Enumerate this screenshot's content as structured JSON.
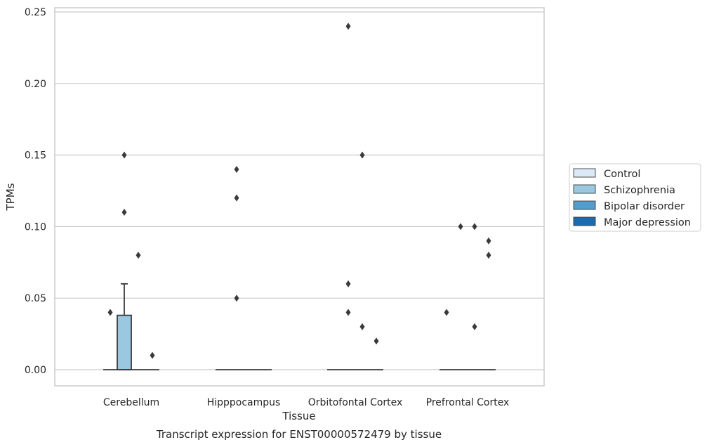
{
  "chart_data": {
    "type": "box",
    "xlabel": "Tissue",
    "ylabel": "TPMs",
    "caption": "Transcript expression for ENST00000572479 by tissue",
    "ylim": [
      -0.012,
      0.253
    ],
    "yticks": [
      "0.00",
      "0.05",
      "0.10",
      "0.15",
      "0.20",
      "0.25"
    ],
    "ytick_values": [
      0,
      0.05,
      0.1,
      0.15,
      0.2,
      0.25
    ],
    "grid": true,
    "legend_position": "right",
    "categories": [
      "Cerebellum",
      "Hipppocampus",
      "Orbitofontal Cortex",
      "Prefrontal Cortex"
    ],
    "series": [
      {
        "name": "Control",
        "color": "#dbe9f6",
        "boxes": [
          {
            "q1": 0,
            "median": 0,
            "q3": 0,
            "whisker_low": 0,
            "whisker_high": 0,
            "outliers": [
              0.04
            ]
          },
          {
            "q1": 0,
            "median": 0,
            "q3": 0,
            "whisker_low": 0,
            "whisker_high": 0,
            "outliers": []
          },
          {
            "q1": 0,
            "median": 0,
            "q3": 0,
            "whisker_low": 0,
            "whisker_high": 0,
            "outliers": []
          },
          {
            "q1": 0,
            "median": 0,
            "q3": 0,
            "whisker_low": 0,
            "whisker_high": 0,
            "outliers": [
              0.04
            ]
          }
        ]
      },
      {
        "name": "Schizophrenia",
        "color": "#9ac8e0",
        "boxes": [
          {
            "q1": 0,
            "median": 0,
            "q3": 0.038,
            "whisker_low": 0,
            "whisker_high": 0.06,
            "outliers": [
              0.15,
              0.11
            ]
          },
          {
            "q1": 0,
            "median": 0,
            "q3": 0,
            "whisker_low": 0,
            "whisker_high": 0,
            "outliers": [
              0.14,
              0.12,
              0.05
            ]
          },
          {
            "q1": 0,
            "median": 0,
            "q3": 0,
            "whisker_low": 0,
            "whisker_high": 0,
            "outliers": [
              0.24,
              0.06,
              0.04
            ]
          },
          {
            "q1": 0,
            "median": 0,
            "q3": 0,
            "whisker_low": 0,
            "whisker_high": 0,
            "outliers": [
              0.1
            ]
          }
        ]
      },
      {
        "name": "Bipolar disorder",
        "color": "#529dcc",
        "boxes": [
          {
            "q1": 0,
            "median": 0,
            "q3": 0,
            "whisker_low": 0,
            "whisker_high": 0,
            "outliers": [
              0.08
            ]
          },
          {
            "q1": 0,
            "median": 0,
            "q3": 0,
            "whisker_low": 0,
            "whisker_high": 0,
            "outliers": []
          },
          {
            "q1": 0,
            "median": 0,
            "q3": 0,
            "whisker_low": 0,
            "whisker_high": 0,
            "outliers": [
              0.15,
              0.03
            ]
          },
          {
            "q1": 0,
            "median": 0,
            "q3": 0,
            "whisker_low": 0,
            "whisker_high": 0,
            "outliers": [
              0.1,
              0.03
            ]
          }
        ]
      },
      {
        "name": "Major depression",
        "color": "#1c6aaf",
        "boxes": [
          {
            "q1": 0,
            "median": 0,
            "q3": 0,
            "whisker_low": 0,
            "whisker_high": 0,
            "outliers": [
              0.01
            ]
          },
          {
            "q1": 0,
            "median": 0,
            "q3": 0,
            "whisker_low": 0,
            "whisker_high": 0,
            "outliers": []
          },
          {
            "q1": 0,
            "median": 0,
            "q3": 0,
            "whisker_low": 0,
            "whisker_high": 0,
            "outliers": [
              0.02
            ]
          },
          {
            "q1": 0,
            "median": 0,
            "q3": 0,
            "whisker_low": 0,
            "whisker_high": 0,
            "outliers": [
              0.09,
              0.08
            ]
          }
        ]
      }
    ]
  },
  "style": {
    "grid_color": "#cccccc",
    "frame_color": "#cccccc",
    "line_color": "#3a3a3a",
    "outlier_color": "#3a3a3a",
    "legend_border": "#cccccc"
  }
}
